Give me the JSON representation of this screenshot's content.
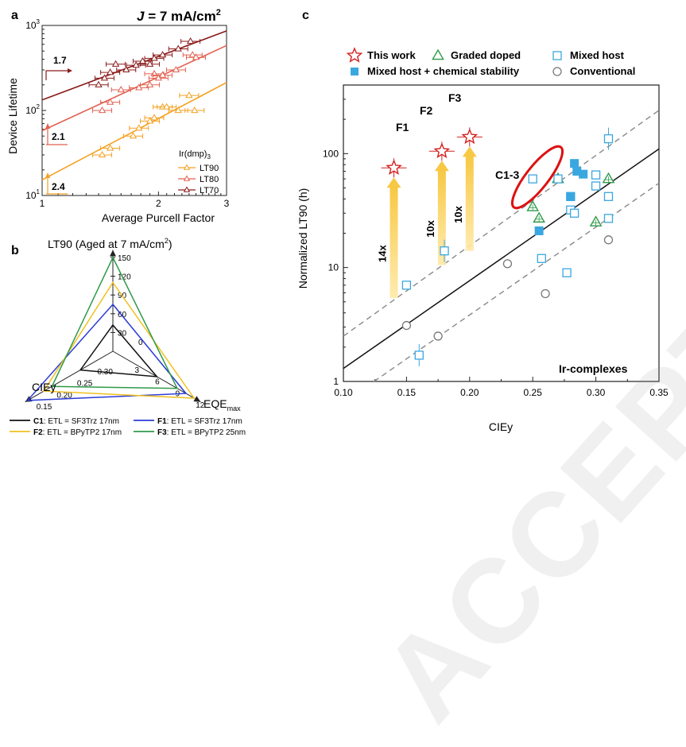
{
  "panel_a": {
    "label": "a",
    "title_prefix": "J",
    "title_suffix": " = 7 mA/cm",
    "title_sup": "2",
    "xlabel": "Average Purcell Factor",
    "ylabel": "Device Lifetime",
    "xticks": [
      "1",
      "2",
      "3"
    ],
    "yticks_base": [
      "10",
      "10",
      "10"
    ],
    "yticks_exp": [
      "1",
      "2",
      "3"
    ],
    "legend_title": "Ir(dmp)",
    "legend_title_sub": "3",
    "slopes": [
      "1.7",
      "2.1",
      "2.4"
    ]
  },
  "panel_b": {
    "label": "b",
    "title_main": "LT90 (Aged at 7 mA/cm",
    "title_sup": "2",
    "title_end": ")",
    "axis_left": "CIEy",
    "axis_right_main": "EQE",
    "axis_right_sub": "max",
    "ticks_lt90": [
      "0",
      "30",
      "60",
      "90",
      "120",
      "150"
    ],
    "ticks_eqe": [
      "3",
      "6",
      "9",
      "12"
    ],
    "ticks_ciey": [
      "0.30",
      "0.25",
      "0.20",
      "0.15"
    ],
    "legend": [
      {
        "name": "C1",
        "text": ": ETL = SF3Trz 17nm",
        "color": "#111111"
      },
      {
        "name": "F1",
        "text": ": ETL = SF3Trz 17nm",
        "color": "#2b3bd6"
      },
      {
        "name": "F2",
        "text": ": ETL = BPyTP2 17nm",
        "color": "#f0c020"
      },
      {
        "name": "F3",
        "text": ": ETL = BPyTP2 25nm",
        "color": "#2f9a4a"
      }
    ]
  },
  "panel_c": {
    "label": "c",
    "xlabel": "CIEy",
    "ylabel": "Normalized LT90 (h)",
    "xticks": [
      "0.10",
      "0.15",
      "0.20",
      "0.25",
      "0.30",
      "0.35"
    ],
    "yticks": [
      "1",
      "10",
      "100"
    ],
    "legend": [
      "This work",
      "Graded doped",
      "Mixed host",
      "Mixed host + chemical stability",
      "Conventional"
    ],
    "point_labels": [
      "F1",
      "F2",
      "F3",
      "C1-3"
    ],
    "arrow_labels": [
      "14x",
      "10x",
      "10x"
    ],
    "corner_label": "Ir-complexes"
  },
  "watermark": "ACCEPTED ARTICLE",
  "chart_data": [
    {
      "type": "scatter",
      "title": "J = 7 mA/cm2",
      "xlabel": "Average Purcell Factor",
      "ylabel": "Device Lifetime",
      "x_scale": "log",
      "y_scale": "log",
      "xlim": [
        1,
        3
      ],
      "ylim": [
        10,
        1000
      ],
      "legend_title": "Ir(dmp)3",
      "legend_position": "bottom-right",
      "colors": {
        "LT90": "#f4a020",
        "LT80": "#e26050",
        "LT70": "#8a1a1a"
      },
      "series": [
        {
          "name": "LT90",
          "fit_slope": 2.4,
          "x": [
            1.43,
            1.5,
            1.72,
            1.78,
            1.9,
            1.95,
            2.05,
            2.1,
            2.25,
            2.4,
            2.48
          ],
          "y": [
            30,
            36,
            50,
            62,
            75,
            82,
            110,
            110,
            100,
            150,
            100
          ]
        },
        {
          "name": "LT80",
          "fit_slope": 2.1,
          "x": [
            1.43,
            1.5,
            1.6,
            1.78,
            1.9,
            1.95,
            2.0,
            2.05,
            2.22,
            2.45,
            2.5
          ],
          "y": [
            100,
            125,
            175,
            185,
            200,
            270,
            240,
            260,
            300,
            450,
            420
          ]
        },
        {
          "name": "LT70",
          "fit_slope": 1.7,
          "x": [
            1.4,
            1.45,
            1.5,
            1.55,
            1.65,
            1.75,
            1.82,
            1.9,
            1.95,
            2.05,
            2.25,
            2.42
          ],
          "y": [
            200,
            240,
            280,
            350,
            300,
            340,
            380,
            350,
            410,
            450,
            530,
            650
          ]
        }
      ]
    },
    {
      "type": "radar",
      "title": "LT90 (Aged at 7 mA/cm2)",
      "axes": [
        "LT90",
        "EQEmax",
        "CIEy"
      ],
      "axis_ranges": {
        "LT90": [
          0,
          150
        ],
        "EQEmax": [
          0,
          12
        ],
        "CIEy": [
          0.35,
          0.15
        ]
      },
      "series": [
        {
          "name": "C1",
          "values": [
            42,
            6.5,
            0.27
          ]
        },
        {
          "name": "F1",
          "values": [
            75,
            10.8,
            0.14
          ]
        },
        {
          "name": "F2",
          "values": [
            110,
            12.0,
            0.18
          ]
        },
        {
          "name": "F3",
          "values": [
            150,
            9.5,
            0.2
          ]
        }
      ]
    },
    {
      "type": "scatter",
      "xlabel": "CIEy",
      "ylabel": "Normalized LT90 (h)",
      "xlim": [
        0.1,
        0.35
      ],
      "ylim": [
        1,
        400
      ],
      "y_scale": "log",
      "legend_position": "top",
      "series": [
        {
          "name": "This work",
          "x": [
            0.14,
            0.178,
            0.2
          ],
          "y": [
            75,
            105,
            140
          ]
        },
        {
          "name": "Graded doped",
          "x": [
            0.25,
            0.255,
            0.27,
            0.3,
            0.31
          ],
          "y": [
            34,
            27,
            60,
            25,
            60
          ]
        },
        {
          "name": "Mixed host",
          "x": [
            0.15,
            0.16,
            0.18,
            0.25,
            0.257,
            0.27,
            0.277,
            0.28,
            0.28,
            0.283,
            0.3,
            0.3,
            0.31,
            0.31,
            0.31
          ],
          "y": [
            7,
            1.7,
            14,
            60,
            12,
            60,
            9,
            32,
            42,
            30,
            65,
            52,
            135,
            42,
            27
          ]
        },
        {
          "name": "Mixed host + chemical stability",
          "x": [
            0.255,
            0.28,
            0.283,
            0.285,
            0.29
          ],
          "y": [
            21,
            42,
            82,
            70,
            66
          ]
        },
        {
          "name": "Conventional",
          "x": [
            0.15,
            0.175,
            0.23,
            0.26,
            0.31
          ],
          "y": [
            3.1,
            2.5,
            10.8,
            5.9,
            17.5
          ]
        }
      ],
      "fit_line": {
        "x": [
          0.1,
          0.35
        ],
        "y": [
          1.3,
          110
        ]
      },
      "bound_lines": [
        {
          "x": [
            0.1,
            0.35
          ],
          "y": [
            2.5,
            240
          ]
        },
        {
          "x": [
            0.1,
            0.35
          ],
          "y": [
            0.65,
            55
          ]
        }
      ],
      "enhancements": [
        {
          "label": "14x",
          "from": [
            0.14,
            5.4
          ],
          "to": [
            0.14,
            75
          ]
        },
        {
          "label": "10x",
          "from": [
            0.178,
            10.5
          ],
          "to": [
            0.178,
            105
          ]
        },
        {
          "label": "10x",
          "from": [
            0.2,
            14
          ],
          "to": [
            0.2,
            140
          ]
        }
      ]
    }
  ]
}
